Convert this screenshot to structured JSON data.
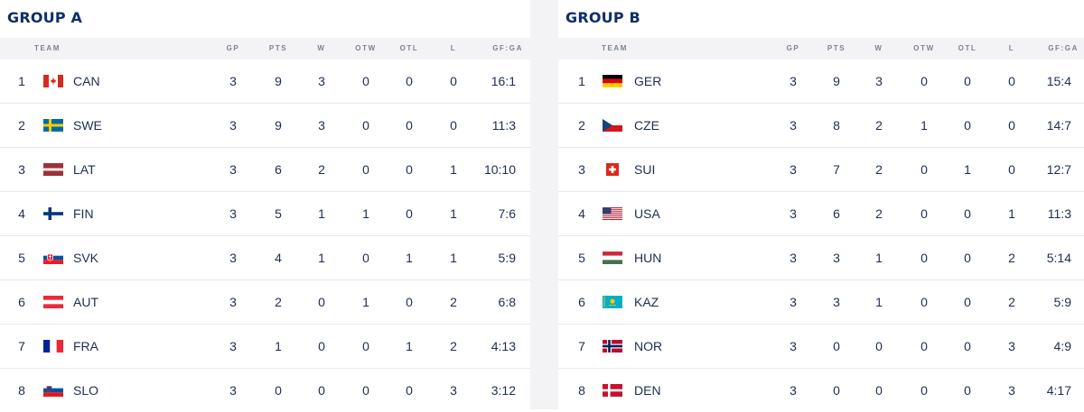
{
  "headers": {
    "team": "TEAM",
    "gp": "GP",
    "pts": "PTS",
    "w": "W",
    "otw": "OTW",
    "otl": "OTL",
    "l": "L",
    "gfga": "GF:GA"
  },
  "groups": [
    {
      "title": "GROUP A",
      "rows": [
        {
          "pos": "1",
          "flag": "canada-flag-icon",
          "team": "CAN",
          "gp": "3",
          "pts": "9",
          "w": "3",
          "otw": "0",
          "otl": "0",
          "l": "0",
          "gfga": "16:1"
        },
        {
          "pos": "2",
          "flag": "sweden-flag-icon",
          "team": "SWE",
          "gp": "3",
          "pts": "9",
          "w": "3",
          "otw": "0",
          "otl": "0",
          "l": "0",
          "gfga": "11:3"
        },
        {
          "pos": "3",
          "flag": "latvia-flag-icon",
          "team": "LAT",
          "gp": "3",
          "pts": "6",
          "w": "2",
          "otw": "0",
          "otl": "0",
          "l": "1",
          "gfga": "10:10"
        },
        {
          "pos": "4",
          "flag": "finland-flag-icon",
          "team": "FIN",
          "gp": "3",
          "pts": "5",
          "w": "1",
          "otw": "1",
          "otl": "0",
          "l": "1",
          "gfga": "7:6"
        },
        {
          "pos": "5",
          "flag": "slovakia-flag-icon",
          "team": "SVK",
          "gp": "3",
          "pts": "4",
          "w": "1",
          "otw": "0",
          "otl": "1",
          "l": "1",
          "gfga": "5:9"
        },
        {
          "pos": "6",
          "flag": "austria-flag-icon",
          "team": "AUT",
          "gp": "3",
          "pts": "2",
          "w": "0",
          "otw": "1",
          "otl": "0",
          "l": "2",
          "gfga": "6:8"
        },
        {
          "pos": "7",
          "flag": "france-flag-icon",
          "team": "FRA",
          "gp": "3",
          "pts": "1",
          "w": "0",
          "otw": "0",
          "otl": "1",
          "l": "2",
          "gfga": "4:13"
        },
        {
          "pos": "8",
          "flag": "slovenia-flag-icon",
          "team": "SLO",
          "gp": "3",
          "pts": "0",
          "w": "0",
          "otw": "0",
          "otl": "0",
          "l": "3",
          "gfga": "3:12"
        }
      ]
    },
    {
      "title": "GROUP B",
      "rows": [
        {
          "pos": "1",
          "flag": "germany-flag-icon",
          "team": "GER",
          "gp": "3",
          "pts": "9",
          "w": "3",
          "otw": "0",
          "otl": "0",
          "l": "0",
          "gfga": "15:4"
        },
        {
          "pos": "2",
          "flag": "czechia-flag-icon",
          "team": "CZE",
          "gp": "3",
          "pts": "8",
          "w": "2",
          "otw": "1",
          "otl": "0",
          "l": "0",
          "gfga": "14:7"
        },
        {
          "pos": "3",
          "flag": "switzerland-flag-icon",
          "team": "SUI",
          "gp": "3",
          "pts": "7",
          "w": "2",
          "otw": "0",
          "otl": "1",
          "l": "0",
          "gfga": "12:7"
        },
        {
          "pos": "4",
          "flag": "usa-flag-icon",
          "team": "USA",
          "gp": "3",
          "pts": "6",
          "w": "2",
          "otw": "0",
          "otl": "0",
          "l": "1",
          "gfga": "11:3"
        },
        {
          "pos": "5",
          "flag": "hungary-flag-icon",
          "team": "HUN",
          "gp": "3",
          "pts": "3",
          "w": "1",
          "otw": "0",
          "otl": "0",
          "l": "2",
          "gfga": "5:14"
        },
        {
          "pos": "6",
          "flag": "kazakhstan-flag-icon",
          "team": "KAZ",
          "gp": "3",
          "pts": "3",
          "w": "1",
          "otw": "0",
          "otl": "0",
          "l": "2",
          "gfga": "5:9"
        },
        {
          "pos": "7",
          "flag": "norway-flag-icon",
          "team": "NOR",
          "gp": "3",
          "pts": "0",
          "w": "0",
          "otw": "0",
          "otl": "0",
          "l": "3",
          "gfga": "4:9"
        },
        {
          "pos": "8",
          "flag": "denmark-flag-icon",
          "team": "DEN",
          "gp": "3",
          "pts": "0",
          "w": "0",
          "otw": "0",
          "otl": "0",
          "l": "3",
          "gfga": "4:17"
        }
      ]
    }
  ]
}
